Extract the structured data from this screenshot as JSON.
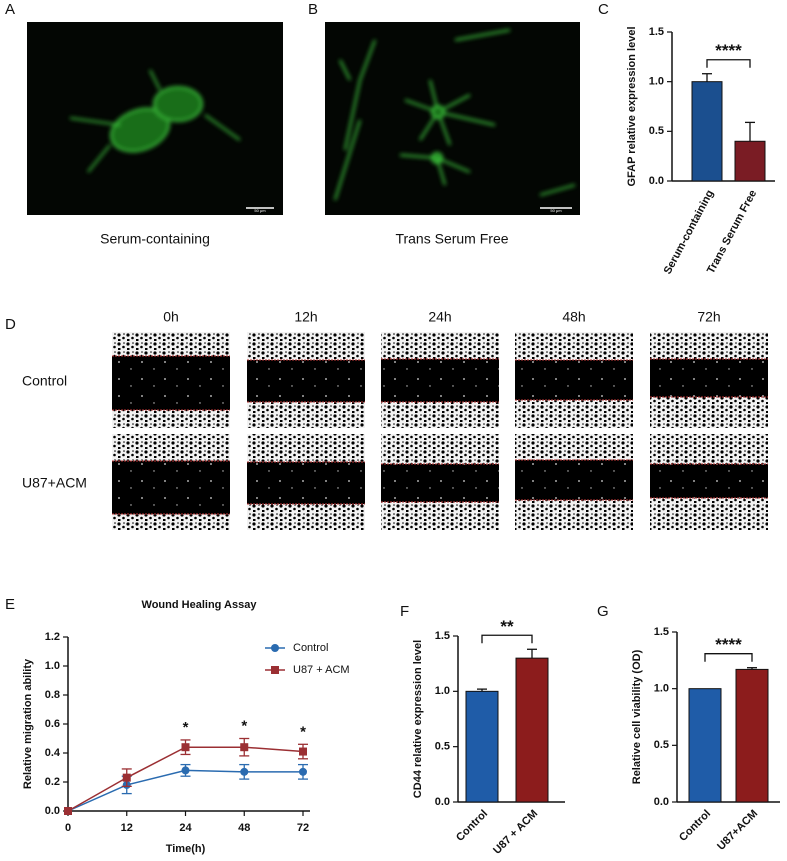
{
  "panel_labels": [
    "A",
    "B",
    "C",
    "D",
    "E",
    "F",
    "G"
  ],
  "images": [
    {
      "caption": "Serum-containing",
      "scale_bar": "50 μm"
    },
    {
      "caption": "Trans Serum Free",
      "scale_bar": "50 μm"
    }
  ],
  "wound_healing": {
    "time_points": [
      "0h",
      "12h",
      "24h",
      "48h",
      "72h"
    ],
    "groups": [
      "Control",
      "U87+ACM"
    ]
  },
  "chart_data": [
    {
      "type": "bar",
      "ylabel": "GFAP relative expression level",
      "categories": [
        "Serum-containing",
        "Trans Serum Free"
      ],
      "values": [
        1.0,
        0.4
      ],
      "errors": [
        0.08,
        0.19
      ],
      "colors": [
        "#1b4f8f",
        "#7a1c24"
      ],
      "ylim": [
        0,
        1.5
      ],
      "yticks": [
        {
          "value": 0,
          "label": "0.0"
        },
        0.5,
        {
          "value": 1,
          "label": "1.0"
        },
        1.5
      ],
      "significance": "****"
    },
    {
      "type": "line",
      "title": "Wound Healing Assay",
      "xlabel": "Time(h)",
      "ylabel": "Relative migration ability",
      "categories": [
        "0",
        "12",
        "24",
        "48",
        "72"
      ],
      "series": [
        {
          "name": "Control",
          "color": "#2a6bb0",
          "marker": "circle",
          "values": [
            0,
            0.18,
            0.28,
            0.27,
            0.27
          ],
          "errors": [
            0,
            0.06,
            0.04,
            0.05,
            0.05
          ]
        },
        {
          "name": "U87 + ACM",
          "color": "#9b2f33",
          "marker": "square",
          "values": [
            0,
            0.23,
            0.44,
            0.44,
            0.41
          ],
          "errors": [
            0,
            0.06,
            0.05,
            0.06,
            0.05
          ]
        }
      ],
      "ylim": [
        0,
        1.2
      ],
      "yticks": [
        {
          "value": 0,
          "label": "0.0"
        },
        0.2,
        0.4,
        0.6,
        0.8,
        {
          "value": 1,
          "label": "1.0"
        },
        1.2
      ],
      "significant_at": [
        "24",
        "48",
        "72"
      ],
      "significance_label": "*"
    },
    {
      "type": "bar",
      "ylabel": "CD44 relative expression level",
      "categories": [
        "Control",
        "U87 + ACM"
      ],
      "values": [
        1.0,
        1.3
      ],
      "errors": [
        0.02,
        0.08
      ],
      "colors": [
        "#1f5ca8",
        "#8c1c1c"
      ],
      "ylim": [
        0,
        1.5
      ],
      "yticks": [
        {
          "value": 0,
          "label": "0.0"
        },
        0.5,
        {
          "value": 1,
          "label": "1.0"
        },
        1.5
      ],
      "significance": "**"
    },
    {
      "type": "bar",
      "ylabel": "Relative cell viability (OD)",
      "categories": [
        "Control",
        "U87+ACM"
      ],
      "values": [
        1.0,
        1.17
      ],
      "errors": [
        0,
        0.015
      ],
      "colors": [
        "#1f5ca8",
        "#8c1c1c"
      ],
      "ylim": [
        0,
        1.5
      ],
      "yticks": [
        {
          "value": 0,
          "label": "0.0"
        },
        0.5,
        {
          "value": 1,
          "label": "1.0"
        },
        1.5
      ],
      "significance": "****"
    }
  ]
}
